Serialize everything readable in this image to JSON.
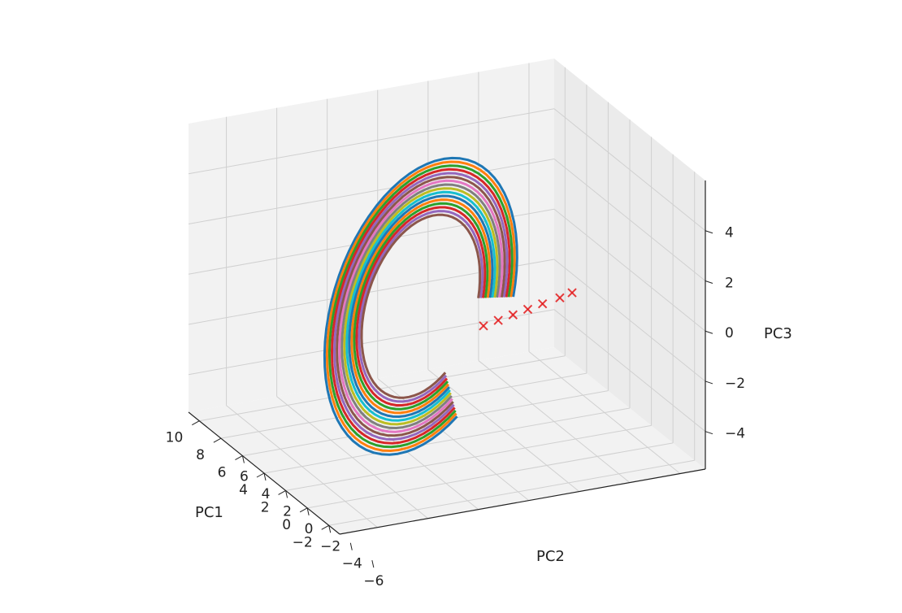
{
  "chart_data": {
    "type": "line",
    "projection": "3d",
    "title": "",
    "axes": {
      "x": {
        "label": "PC1",
        "ticks": [
          10,
          8,
          6,
          4,
          2,
          0,
          -2
        ],
        "tick_labels": [
          "10",
          "8",
          "6",
          "4",
          "2",
          "0",
          "−2"
        ],
        "lim": [
          -3,
          11
        ]
      },
      "y": {
        "label": "PC2",
        "ticks": [
          6,
          4,
          2,
          0,
          -2,
          -4,
          -6
        ],
        "tick_labels": [
          "6",
          "4",
          "2",
          "0",
          "−2",
          "−4",
          "−6"
        ],
        "lim": [
          -7,
          7.5
        ]
      },
      "z": {
        "label": "PC3",
        "ticks": [
          4,
          2,
          0,
          -2,
          -4
        ],
        "tick_labels": [
          "4",
          "2",
          "0",
          "−2",
          "−4"
        ],
        "lim": [
          -5.5,
          6
        ]
      }
    },
    "grid": true,
    "legend": false,
    "series_colors": [
      "#1f77b4",
      "#ff7f0e",
      "#2ca02c",
      "#d62728",
      "#9467bd",
      "#8c564b",
      "#e377c2",
      "#7f7f7f",
      "#bcbd22",
      "#17becf"
    ],
    "trajectories": {
      "description_note": "",
      "count": 16,
      "loop": {
        "center_pc1": 3.5,
        "center_pc2": 1.5,
        "center_pc3": 0.5,
        "radius_range": [
          3.8,
          6.2
        ]
      }
    },
    "fixed_points": {
      "marker": "x",
      "color": "#e41a1c",
      "points": [
        {
          "x": 1.0,
          "y": -0.5,
          "z": 0.2
        },
        {
          "x": 0.8,
          "y": -1.0,
          "z": 0.4
        },
        {
          "x": 0.6,
          "y": -1.5,
          "z": 0.6
        },
        {
          "x": 0.4,
          "y": -2.0,
          "z": 0.8
        },
        {
          "x": 0.2,
          "y": -2.6,
          "z": 1.0
        },
        {
          "x": 0.0,
          "y": -3.0,
          "z": 1.2
        },
        {
          "x": 1.2,
          "y": 0.0,
          "z": 0.0
        }
      ]
    }
  }
}
